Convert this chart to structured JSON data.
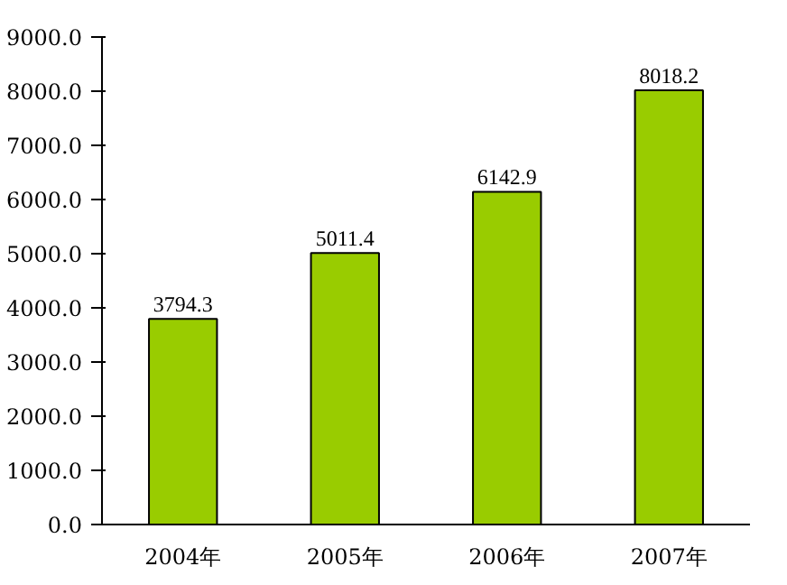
{
  "chart_data": {
    "type": "bar",
    "categories": [
      "2004年",
      "2005年",
      "2006年",
      "2007年"
    ],
    "values": [
      3794.3,
      5011.4,
      6142.9,
      8018.2
    ],
    "color": "#99cc00",
    "data_labels": true,
    "ylim": [
      0,
      9000
    ],
    "yticks": [
      {
        "value": 0,
        "label": "0.0"
      },
      {
        "value": 1000,
        "label": "1000.0"
      },
      {
        "value": 2000,
        "label": "2000.0"
      },
      {
        "value": 3000,
        "label": "3000.0"
      },
      {
        "value": 4000,
        "label": "4000.0"
      },
      {
        "value": 5000,
        "label": "5000.0"
      },
      {
        "value": 6000,
        "label": "6000.0"
      },
      {
        "value": 7000,
        "label": "7000.0"
      },
      {
        "value": 8000,
        "label": "8000.0"
      },
      {
        "value": 9000,
        "label": "9000.0"
      }
    ],
    "grid": false
  }
}
